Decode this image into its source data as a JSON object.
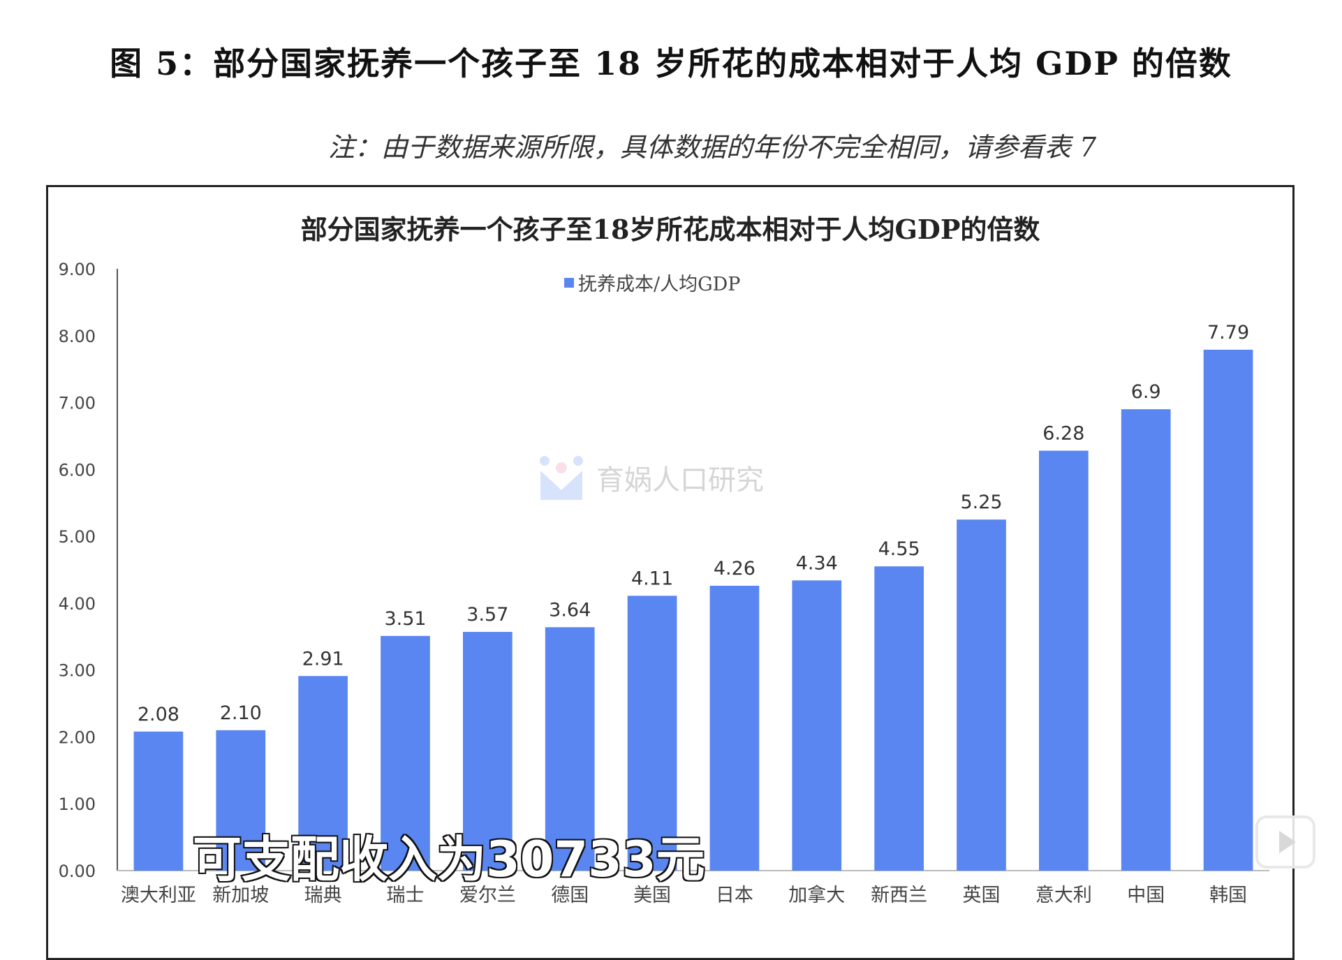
{
  "figure": {
    "title": "图 5：部分国家抚养一个孩子至 18 岁所花的成本相对于人均 GDP 的倍数",
    "note": "注：由于数据来源所限，具体数据的年份不完全相同，请参看表 7"
  },
  "watermark": {
    "text": "育娲人口研究"
  },
  "caption": {
    "text": "可支配收入为30733元"
  },
  "colors": {
    "bar": "#5a86f2",
    "axis": "#555555"
  },
  "chart_data": {
    "type": "bar",
    "title": "部分国家抚养一个孩子至18岁所花成本相对于人均GDP的倍数",
    "xlabel": "",
    "ylabel": "",
    "legend": "top-center",
    "grid": false,
    "ylim": [
      0,
      9
    ],
    "yticks": [
      "0.00",
      "1.00",
      "2.00",
      "3.00",
      "4.00",
      "5.00",
      "6.00",
      "7.00",
      "8.00",
      "9.00"
    ],
    "categories": [
      "澳大利亚",
      "新加坡",
      "瑞典",
      "瑞士",
      "爱尔兰",
      "德国",
      "美国",
      "日本",
      "加拿大",
      "新西兰",
      "英国",
      "意大利",
      "中国",
      "韩国"
    ],
    "series": [
      {
        "name": "抚养成本/人均GDP",
        "values": [
          2.08,
          2.1,
          2.91,
          3.51,
          3.57,
          3.64,
          4.11,
          4.26,
          4.34,
          4.55,
          5.25,
          6.28,
          6.9,
          7.79
        ],
        "labels": [
          "2.08",
          "2.10",
          "2.91",
          "3.51",
          "3.57",
          "3.64",
          "4.11",
          "4.26",
          "4.34",
          "4.55",
          "5.25",
          "6.28",
          "6.9",
          "7.79"
        ]
      }
    ]
  }
}
